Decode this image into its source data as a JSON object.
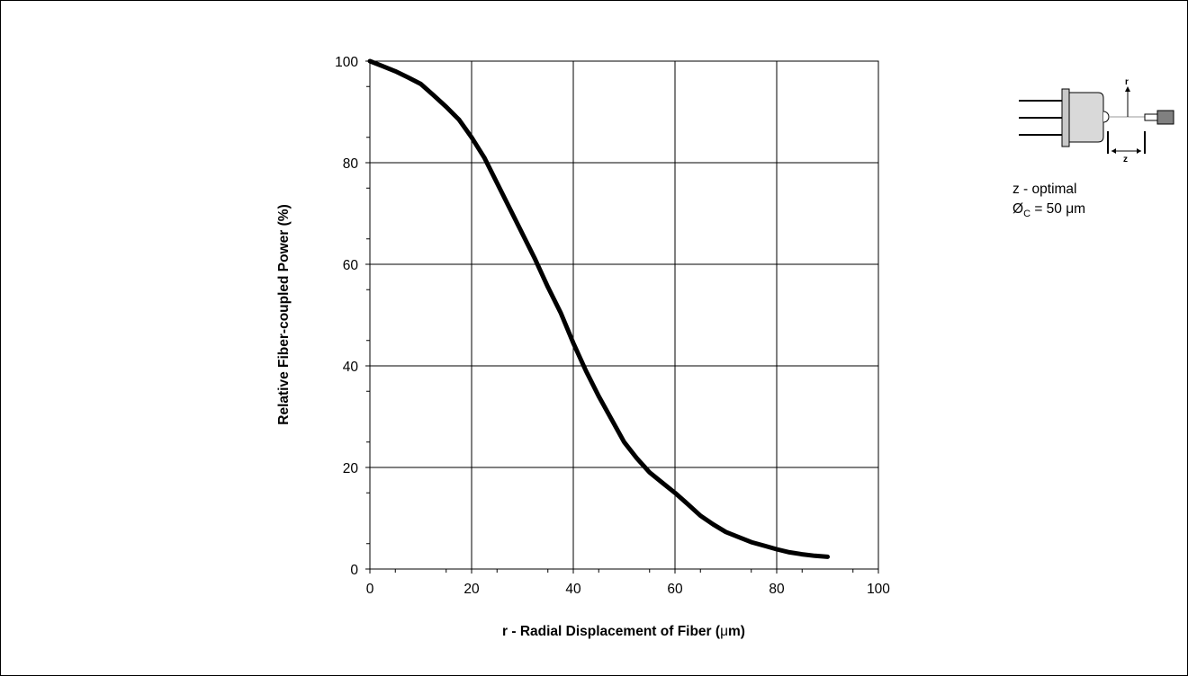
{
  "chart_data": {
    "type": "line",
    "xlabel": "r - Radial Displacement of Fiber (μm)",
    "xlabel_main": "r - Radial Displacement of Fiber (",
    "xlabel_unit": "μ",
    "xlabel_tail": "m)",
    "ylabel": "Relative Fiber-coupled Power (%)",
    "xlim": [
      0,
      100
    ],
    "ylim": [
      0,
      100
    ],
    "x_ticks": [
      "0",
      "20",
      "40",
      "60",
      "80",
      "100"
    ],
    "y_ticks": [
      "0",
      "20",
      "40",
      "60",
      "80",
      "100"
    ],
    "grid": true,
    "series": [
      {
        "x": [
          0,
          2.5,
          5,
          7.5,
          10,
          12.5,
          15,
          17.5,
          20,
          22.5,
          25,
          27.5,
          30,
          32.5,
          35,
          37.5,
          40,
          42.5,
          45,
          47.5,
          50,
          52.5,
          55,
          57.5,
          60,
          62.5,
          65,
          67.5,
          70,
          72.5,
          75,
          77.5,
          80,
          82.5,
          85,
          87.5,
          90
        ],
        "y": [
          100,
          99,
          98,
          96.8,
          95.5,
          93.3,
          91,
          88.5,
          85,
          81,
          76,
          71,
          66,
          61,
          55.5,
          50.5,
          44.5,
          39,
          34,
          29.5,
          25,
          21.8,
          19,
          17,
          15,
          12.8,
          10.5,
          8.8,
          7.3,
          6.3,
          5.3,
          4.6,
          3.9,
          3.3,
          2.9,
          2.6,
          2.4
        ]
      }
    ],
    "annotations": {
      "line1": "z - optimal",
      "line2_prefix": "Ø",
      "line2_sub": "C",
      "line2_mid": " = 50 ",
      "line2_unit": "μ",
      "line2_tail": "m",
      "diagram_r": "r",
      "diagram_z": "z"
    }
  }
}
